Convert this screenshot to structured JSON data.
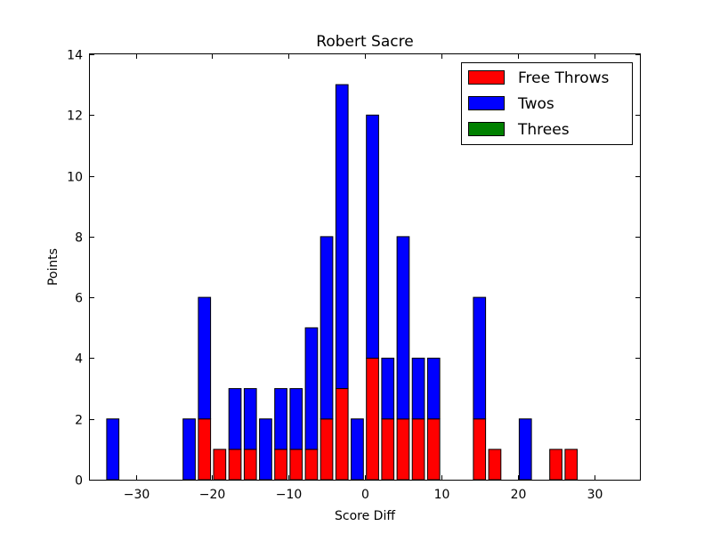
{
  "chart_data": {
    "type": "bar",
    "stacked": true,
    "title": "Robert Sacre",
    "xlabel": "Score Diff",
    "ylabel": "Points",
    "xlim": [
      -36,
      36
    ],
    "ylim": [
      0,
      14
    ],
    "xticks": [
      -30,
      -20,
      -10,
      0,
      10,
      20,
      30
    ],
    "xtick_labels": [
      "−30",
      "−20",
      "−10",
      "0",
      "10",
      "20",
      "30"
    ],
    "yticks": [
      0,
      2,
      4,
      6,
      8,
      10,
      12,
      14
    ],
    "ytick_labels": [
      "0",
      "2",
      "4",
      "6",
      "8",
      "10",
      "12",
      "14"
    ],
    "bar_width": 1.6,
    "x": [
      -33,
      -31,
      -29,
      -27,
      -25,
      -23,
      -21,
      -19,
      -17,
      -15,
      -13,
      -11,
      -9,
      -7,
      -5,
      -3,
      -1,
      1,
      3,
      5,
      7,
      9,
      11,
      13,
      15,
      17,
      19,
      21,
      23,
      25,
      27,
      29,
      31,
      33,
      35
    ],
    "series": [
      {
        "name": "Free Throws",
        "color": "#ff0000",
        "values": [
          0,
          0,
          0,
          0,
          0,
          0,
          2,
          1,
          1,
          1,
          0,
          1,
          1,
          1,
          2,
          3,
          0,
          4,
          2,
          2,
          2,
          2,
          0,
          0,
          2,
          1,
          0,
          0,
          0,
          1,
          1,
          0,
          0,
          0,
          0
        ]
      },
      {
        "name": "Twos",
        "color": "#0000ff",
        "values": [
          2,
          0,
          0,
          0,
          0,
          2,
          4,
          0,
          2,
          2,
          2,
          2,
          2,
          4,
          6,
          10,
          2,
          8,
          2,
          6,
          2,
          2,
          0,
          0,
          4,
          0,
          0,
          2,
          0,
          0,
          0,
          0,
          0,
          0,
          0
        ]
      },
      {
        "name": "Threes",
        "color": "#008000",
        "values": [
          0,
          0,
          0,
          0,
          0,
          0,
          0,
          0,
          0,
          0,
          0,
          0,
          0,
          0,
          0,
          0,
          0,
          0,
          0,
          0,
          0,
          0,
          0,
          0,
          0,
          0,
          0,
          0,
          0,
          0,
          0,
          0,
          0,
          0,
          0
        ]
      }
    ],
    "legend": "top-right",
    "grid": false
  }
}
